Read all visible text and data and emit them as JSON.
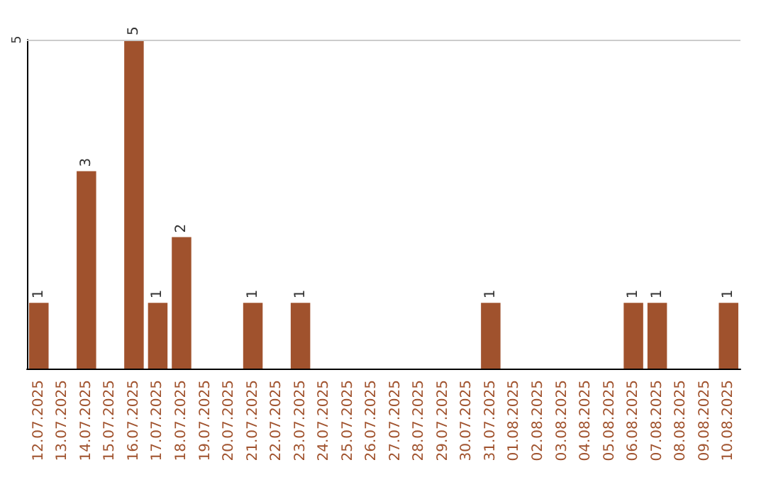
{
  "chart_data": {
    "type": "bar",
    "categories": [
      "12.07.2025",
      "13.07.2025",
      "14.07.2025",
      "15.07.2025",
      "16.07.2025",
      "17.07.2025",
      "18.07.2025",
      "19.07.2025",
      "20.07.2025",
      "21.07.2025",
      "22.07.2025",
      "23.07.2025",
      "24.07.2025",
      "25.07.2025",
      "26.07.2025",
      "27.07.2025",
      "28.07.2025",
      "29.07.2025",
      "30.07.2025",
      "31.07.2025",
      "01.08.2025",
      "02.08.2025",
      "03.08.2025",
      "04.08.2025",
      "05.08.2025",
      "06.08.2025",
      "07.08.2025",
      "08.08.2025",
      "09.08.2025",
      "10.08.2025"
    ],
    "values": [
      1,
      null,
      3,
      null,
      5,
      1,
      2,
      null,
      null,
      1,
      null,
      1,
      null,
      null,
      null,
      null,
      null,
      null,
      null,
      1,
      null,
      null,
      null,
      null,
      null,
      1,
      1,
      null,
      null,
      1
    ],
    "color": "#a0522d",
    "ylim": [
      0,
      5
    ],
    "yticks": [
      5
    ],
    "ref_lines": [
      {
        "axis": "y",
        "value": 5,
        "color": "#cccccc"
      }
    ],
    "data_labels": true
  }
}
